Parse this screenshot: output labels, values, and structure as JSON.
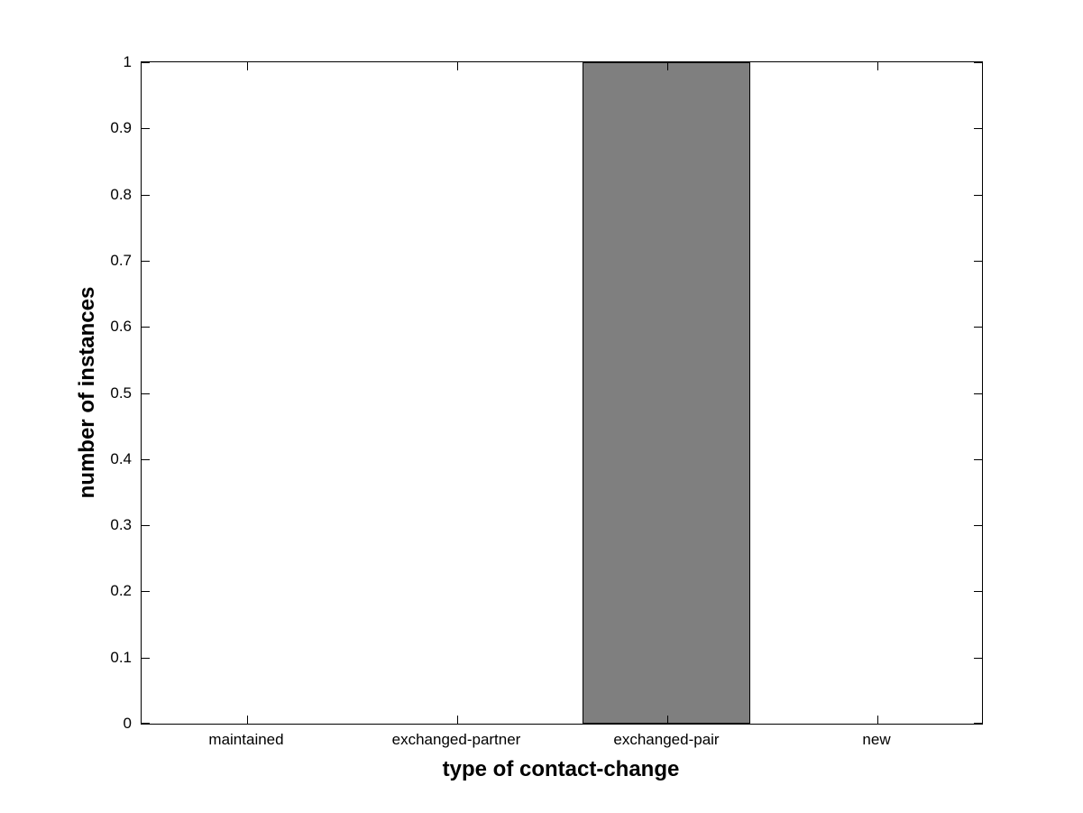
{
  "chart_data": {
    "type": "bar",
    "title": "",
    "xlabel": "type of contact-change",
    "ylabel": "number of instances",
    "categories": [
      "maintained",
      "exchanged-partner",
      "exchanged-pair",
      "new"
    ],
    "values": [
      0,
      0,
      1,
      0
    ],
    "ylim": [
      0,
      1
    ],
    "yticks": [
      0,
      0.1,
      0.2,
      0.3,
      0.4,
      0.5,
      0.6,
      0.7,
      0.8,
      0.9,
      1
    ],
    "ytick_labels": [
      "0",
      "0.1",
      "0.2",
      "0.3",
      "0.4",
      "0.5",
      "0.6",
      "0.7",
      "0.8",
      "0.9",
      "1"
    ],
    "grid": false,
    "legend": null,
    "box": "on",
    "tick_direction": "in",
    "bar_width_fraction": 0.8,
    "bar_color": "#7f7f7f",
    "bar_edge_color": "#000000",
    "axis_color": "#000000",
    "background_color": "#ffffff",
    "text_color": "#000000"
  }
}
